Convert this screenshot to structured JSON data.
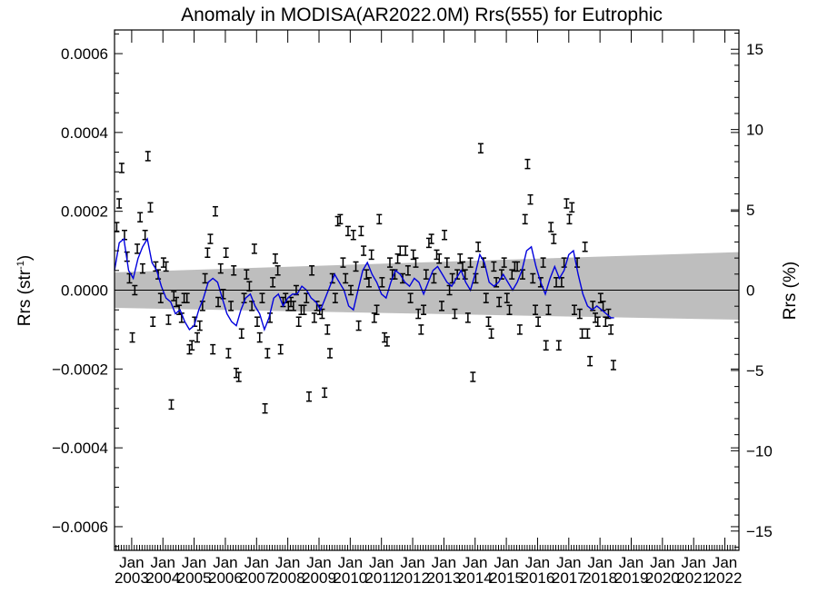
{
  "chart_data": {
    "type": "scatter",
    "title": "Anomaly in MODISA(AR2022.0M) Rrs(555) for Eutrophic",
    "ylabel_left_main": "Rrs (str",
    "ylabel_left_sup": "-1",
    "ylabel_left_end": ")",
    "ylabel_right": "Rrs (%)",
    "ylim_left": [
      -0.00066,
      0.00066
    ],
    "ylim_right": [
      -16.2,
      16.2
    ],
    "xlim": [
      2002.45,
      2022.45
    ],
    "left_ticks": [
      -0.0006,
      -0.0004,
      -0.0002,
      0.0,
      0.0002,
      0.0004,
      0.0006
    ],
    "left_tick_labels": [
      "−0.0006",
      "−0.0004",
      "−0.0002",
      "0.0000",
      "0.0002",
      "0.0004",
      "0.0006"
    ],
    "right_ticks": [
      -15,
      -10,
      -5,
      0,
      5,
      10,
      15
    ],
    "right_tick_labels": [
      "−15",
      "−10",
      "−5",
      "0",
      "5",
      "10",
      "15"
    ],
    "x_month_label": "Jan",
    "x_years": [
      "2003",
      "2004",
      "2005",
      "2006",
      "2007",
      "2008",
      "2009",
      "2010",
      "2011",
      "2012",
      "2013",
      "2014",
      "2015",
      "2016",
      "2017",
      "2018",
      "2019",
      "2020",
      "2021",
      "2022"
    ],
    "band": {
      "x": [
        2002.45,
        2022.45
      ],
      "upper": [
        4.5e-05,
        9.65e-05
      ],
      "lower": [
        -4.5e-05,
        -7.5e-05
      ]
    },
    "zero_line": 0,
    "anomalies": [
      [
        2002.52,
        0.00016
      ],
      [
        2002.6,
        0.00022
      ],
      [
        2002.68,
        0.00031
      ],
      [
        2002.77,
        0.00014
      ],
      [
        2002.85,
        8.5e-05
      ],
      [
        2002.93,
        3e-05
      ],
      [
        2003.02,
        -0.00012
      ],
      [
        2003.1,
        0.0
      ],
      [
        2003.18,
        0.000105
      ],
      [
        2003.27,
        0.000185
      ],
      [
        2003.35,
        5.5e-05
      ],
      [
        2003.43,
        0.00014
      ],
      [
        2003.52,
        0.00034
      ],
      [
        2003.6,
        0.00021
      ],
      [
        2003.68,
        -8e-05
      ],
      [
        2003.77,
        6e-05
      ],
      [
        2003.85,
        4e-05
      ],
      [
        2003.93,
        -2e-05
      ],
      [
        2004.02,
        7e-05
      ],
      [
        2004.1,
        6e-05
      ],
      [
        2004.18,
        -7.5e-05
      ],
      [
        2004.27,
        -0.00029
      ],
      [
        2004.35,
        -1.5e-05
      ],
      [
        2004.43,
        -3e-05
      ],
      [
        2004.52,
        -5e-05
      ],
      [
        2004.6,
        -7e-05
      ],
      [
        2004.68,
        -2e-05
      ],
      [
        2004.77,
        -2e-05
      ],
      [
        2004.85,
        -0.00015
      ],
      [
        2004.93,
        -0.00014
      ],
      [
        2005.02,
        -8e-05
      ],
      [
        2005.1,
        -0.00012
      ],
      [
        2005.18,
        -9e-05
      ],
      [
        2005.27,
        -4e-05
      ],
      [
        2005.35,
        3e-05
      ],
      [
        2005.43,
        9.5e-05
      ],
      [
        2005.52,
        0.00013
      ],
      [
        2005.6,
        -0.00015
      ],
      [
        2005.68,
        0.0002
      ],
      [
        2005.77,
        -3e-05
      ],
      [
        2005.85,
        5.5e-05
      ],
      [
        2005.93,
        -1e-05
      ],
      [
        2006.02,
        9.5e-05
      ],
      [
        2006.1,
        -0.00016
      ],
      [
        2006.18,
        -4e-05
      ],
      [
        2006.27,
        5e-05
      ],
      [
        2006.35,
        -0.00021
      ],
      [
        2006.43,
        -0.00022
      ],
      [
        2006.52,
        -0.00011
      ],
      [
        2006.6,
        -2e-05
      ],
      [
        2006.68,
        4e-05
      ],
      [
        2006.77,
        1e-05
      ],
      [
        2006.85,
        -4e-05
      ],
      [
        2006.93,
        0.000105
      ],
      [
        2007.02,
        -8e-05
      ],
      [
        2007.1,
        -0.00012
      ],
      [
        2007.18,
        -2e-05
      ],
      [
        2007.27,
        -0.0003
      ],
      [
        2007.35,
        -0.00016
      ],
      [
        2007.43,
        -7e-05
      ],
      [
        2007.52,
        2e-05
      ],
      [
        2007.6,
        8e-05
      ],
      [
        2007.68,
        5e-05
      ],
      [
        2007.77,
        -0.00015
      ],
      [
        2007.85,
        -3e-05
      ],
      [
        2007.93,
        -2e-05
      ],
      [
        2008.02,
        -4e-05
      ],
      [
        2008.1,
        -3e-05
      ],
      [
        2008.18,
        -4e-05
      ],
      [
        2008.27,
        0.0
      ],
      [
        2008.35,
        -8e-05
      ],
      [
        2008.43,
        -5e-05
      ],
      [
        2008.52,
        -5e-05
      ],
      [
        2008.6,
        -2e-05
      ],
      [
        2008.68,
        -0.00027
      ],
      [
        2008.77,
        5e-05
      ],
      [
        2008.85,
        -7e-05
      ],
      [
        2008.93,
        -4e-05
      ],
      [
        2009.02,
        -5e-05
      ],
      [
        2009.1,
        -6e-05
      ],
      [
        2009.18,
        -0.00026
      ],
      [
        2009.27,
        -0.0001
      ],
      [
        2009.35,
        -0.00016
      ],
      [
        2009.43,
        3e-05
      ],
      [
        2009.52,
        -2e-05
      ],
      [
        2009.6,
        0.000175
      ],
      [
        2009.68,
        0.00018
      ],
      [
        2009.77,
        7e-05
      ],
      [
        2009.85,
        3e-05
      ],
      [
        2009.93,
        0.00015
      ],
      [
        2010.02,
        0.0
      ],
      [
        2010.1,
        0.00014
      ],
      [
        2010.18,
        6e-05
      ],
      [
        2010.27,
        -9e-05
      ],
      [
        2010.35,
        0.00015
      ],
      [
        2010.43,
        0.0001
      ],
      [
        2010.52,
        4e-05
      ],
      [
        2010.6,
        2e-05
      ],
      [
        2010.68,
        9e-05
      ],
      [
        2010.77,
        -7e-05
      ],
      [
        2010.85,
        -5e-05
      ],
      [
        2010.93,
        0.00018
      ],
      [
        2011.02,
        2e-05
      ],
      [
        2011.1,
        -0.00012
      ],
      [
        2011.18,
        -0.00013
      ],
      [
        2011.27,
        7e-05
      ],
      [
        2011.35,
        4e-05
      ],
      [
        2011.43,
        4e-05
      ],
      [
        2011.52,
        8e-05
      ],
      [
        2011.6,
        0.0001
      ],
      [
        2011.68,
        3e-05
      ],
      [
        2011.77,
        0.0001
      ],
      [
        2011.85,
        5e-05
      ],
      [
        2011.93,
        -2e-05
      ],
      [
        2012.02,
        9e-05
      ],
      [
        2012.1,
        7e-05
      ],
      [
        2012.18,
        -6e-05
      ],
      [
        2012.27,
        -0.0001
      ],
      [
        2012.35,
        -5e-05
      ],
      [
        2012.43,
        4e-05
      ],
      [
        2012.52,
        0.00012
      ],
      [
        2012.6,
        0.00013
      ],
      [
        2012.68,
        3e-05
      ],
      [
        2012.77,
        9e-05
      ],
      [
        2012.85,
        8e-05
      ],
      [
        2012.93,
        -4e-05
      ],
      [
        2013.02,
        0.00014
      ],
      [
        2013.1,
        7e-05
      ],
      [
        2013.18,
        0.0
      ],
      [
        2013.27,
        3e-05
      ],
      [
        2013.35,
        -6e-05
      ],
      [
        2013.43,
        4e-05
      ],
      [
        2013.52,
        8e-05
      ],
      [
        2013.6,
        6e-05
      ],
      [
        2013.68,
        4e-05
      ],
      [
        2013.77,
        -7e-05
      ],
      [
        2013.85,
        7e-05
      ],
      [
        2013.93,
        -0.00022
      ],
      [
        2014.02,
        3e-05
      ],
      [
        2014.1,
        0.00011
      ],
      [
        2014.18,
        0.00036
      ],
      [
        2014.27,
        7e-05
      ],
      [
        2014.35,
        -2e-05
      ],
      [
        2014.43,
        -8e-05
      ],
      [
        2014.52,
        -0.00011
      ],
      [
        2014.6,
        6e-05
      ],
      [
        2014.68,
        2e-05
      ],
      [
        2014.77,
        -3e-05
      ],
      [
        2014.85,
        4e-05
      ],
      [
        2014.93,
        7e-05
      ],
      [
        2015.02,
        -2e-05
      ],
      [
        2015.1,
        -5e-05
      ],
      [
        2015.18,
        4e-05
      ],
      [
        2015.27,
        6e-05
      ],
      [
        2015.35,
        6e-05
      ],
      [
        2015.43,
        -0.0001
      ],
      [
        2015.52,
        4e-05
      ],
      [
        2015.6,
        0.00018
      ],
      [
        2015.68,
        0.00032
      ],
      [
        2015.77,
        0.00023
      ],
      [
        2015.85,
        3e-05
      ],
      [
        2015.93,
        -5e-05
      ],
      [
        2016.02,
        -8e-05
      ],
      [
        2016.1,
        2e-05
      ],
      [
        2016.18,
        7e-05
      ],
      [
        2016.27,
        -0.00014
      ],
      [
        2016.35,
        -5e-05
      ],
      [
        2016.43,
        0.00016
      ],
      [
        2016.52,
        0.00013
      ],
      [
        2016.6,
        2e-05
      ],
      [
        2016.68,
        -0.00014
      ],
      [
        2016.77,
        2e-05
      ],
      [
        2016.85,
        7e-05
      ],
      [
        2016.93,
        0.00022
      ],
      [
        2017.02,
        0.00018
      ],
      [
        2017.1,
        0.00021
      ],
      [
        2017.18,
        -5e-05
      ],
      [
        2017.27,
        7e-05
      ],
      [
        2017.35,
        -6e-05
      ],
      [
        2017.43,
        -0.00011
      ],
      [
        2017.52,
        0.00011
      ],
      [
        2017.6,
        -0.00011
      ],
      [
        2017.68,
        -0.00018
      ],
      [
        2017.77,
        -4e-05
      ],
      [
        2017.85,
        -7e-05
      ],
      [
        2017.93,
        -8e-05
      ],
      [
        2018.02,
        -2e-05
      ],
      [
        2018.1,
        -4e-05
      ],
      [
        2018.18,
        -8e-05
      ],
      [
        2018.27,
        -6e-05
      ],
      [
        2018.35,
        -0.0001
      ],
      [
        2018.43,
        -0.00019
      ]
    ],
    "trend_line": [
      [
        2002.45,
        5e-05
      ],
      [
        2002.6,
        0.00012
      ],
      [
        2002.75,
        0.00013
      ],
      [
        2002.9,
        5e-05
      ],
      [
        2003.05,
        3e-05
      ],
      [
        2003.2,
        8e-05
      ],
      [
        2003.35,
        0.00011
      ],
      [
        2003.5,
        0.00013
      ],
      [
        2003.65,
        7e-05
      ],
      [
        2003.8,
        5e-05
      ],
      [
        2003.95,
        1e-05
      ],
      [
        2004.1,
        -2e-05
      ],
      [
        2004.25,
        -3e-05
      ],
      [
        2004.4,
        -6e-05
      ],
      [
        2004.55,
        -5e-05
      ],
      [
        2004.7,
        -8e-05
      ],
      [
        2004.85,
        -0.0001
      ],
      [
        2005.0,
        -9e-05
      ],
      [
        2005.15,
        -5e-05
      ],
      [
        2005.3,
        -2e-05
      ],
      [
        2005.45,
        2e-05
      ],
      [
        2005.6,
        3e-05
      ],
      [
        2005.75,
        2e-05
      ],
      [
        2005.9,
        -2e-05
      ],
      [
        2006.05,
        -6e-05
      ],
      [
        2006.2,
        -8e-05
      ],
      [
        2006.35,
        -9e-05
      ],
      [
        2006.5,
        -5e-05
      ],
      [
        2006.65,
        -2e-05
      ],
      [
        2006.8,
        -1e-05
      ],
      [
        2006.95,
        -4e-05
      ],
      [
        2007.1,
        -6e-05
      ],
      [
        2007.25,
        -0.0001
      ],
      [
        2007.4,
        -7e-05
      ],
      [
        2007.55,
        -2e-05
      ],
      [
        2007.7,
        -1e-05
      ],
      [
        2007.85,
        -4e-05
      ],
      [
        2008.0,
        -2e-05
      ],
      [
        2008.15,
        -1e-05
      ],
      [
        2008.3,
        -1e-05
      ],
      [
        2008.45,
        1e-05
      ],
      [
        2008.6,
        0.0
      ],
      [
        2008.75,
        -2e-05
      ],
      [
        2008.9,
        -3e-05
      ],
      [
        2009.05,
        -5e-05
      ],
      [
        2009.2,
        -2e-05
      ],
      [
        2009.35,
        1e-05
      ],
      [
        2009.5,
        4e-05
      ],
      [
        2009.65,
        2e-05
      ],
      [
        2009.8,
        0.0
      ],
      [
        2009.95,
        -4e-05
      ],
      [
        2010.1,
        -5e-05
      ],
      [
        2010.25,
        0.0
      ],
      [
        2010.4,
        5e-05
      ],
      [
        2010.55,
        7e-05
      ],
      [
        2010.7,
        4e-05
      ],
      [
        2010.85,
        2e-05
      ],
      [
        2011.0,
        -1e-05
      ],
      [
        2011.15,
        -2e-05
      ],
      [
        2011.3,
        2e-05
      ],
      [
        2011.45,
        5e-05
      ],
      [
        2011.6,
        4e-05
      ],
      [
        2011.75,
        2e-05
      ],
      [
        2011.9,
        1e-05
      ],
      [
        2012.05,
        3e-05
      ],
      [
        2012.2,
        2e-05
      ],
      [
        2012.35,
        -1e-05
      ],
      [
        2012.5,
        2e-05
      ],
      [
        2012.65,
        5e-05
      ],
      [
        2012.8,
        6e-05
      ],
      [
        2012.95,
        4e-05
      ],
      [
        2013.1,
        2e-05
      ],
      [
        2013.25,
        1e-05
      ],
      [
        2013.4,
        3e-05
      ],
      [
        2013.55,
        5e-05
      ],
      [
        2013.7,
        2e-05
      ],
      [
        2013.85,
        0.0
      ],
      [
        2014.0,
        4e-05
      ],
      [
        2014.15,
        9e-05
      ],
      [
        2014.3,
        7e-05
      ],
      [
        2014.45,
        2e-05
      ],
      [
        2014.6,
        1e-05
      ],
      [
        2014.75,
        2e-05
      ],
      [
        2014.9,
        4e-05
      ],
      [
        2015.05,
        2e-05
      ],
      [
        2015.2,
        0.0
      ],
      [
        2015.35,
        2e-05
      ],
      [
        2015.5,
        5e-05
      ],
      [
        2015.65,
        0.0001
      ],
      [
        2015.8,
        0.00011
      ],
      [
        2015.95,
        6e-05
      ],
      [
        2016.1,
        2e-05
      ],
      [
        2016.25,
        -1e-05
      ],
      [
        2016.4,
        3e-05
      ],
      [
        2016.55,
        6e-05
      ],
      [
        2016.7,
        3e-05
      ],
      [
        2016.85,
        5e-05
      ],
      [
        2017.0,
        9e-05
      ],
      [
        2017.15,
        0.0001
      ],
      [
        2017.3,
        4e-05
      ],
      [
        2017.45,
        -1e-05
      ],
      [
        2017.6,
        -4e-05
      ],
      [
        2017.75,
        -5e-05
      ],
      [
        2017.9,
        -4e-05
      ],
      [
        2018.05,
        -5e-05
      ],
      [
        2018.2,
        -6e-05
      ],
      [
        2018.35,
        -7e-05
      ],
      [
        2018.45,
        -7e-05
      ]
    ]
  }
}
